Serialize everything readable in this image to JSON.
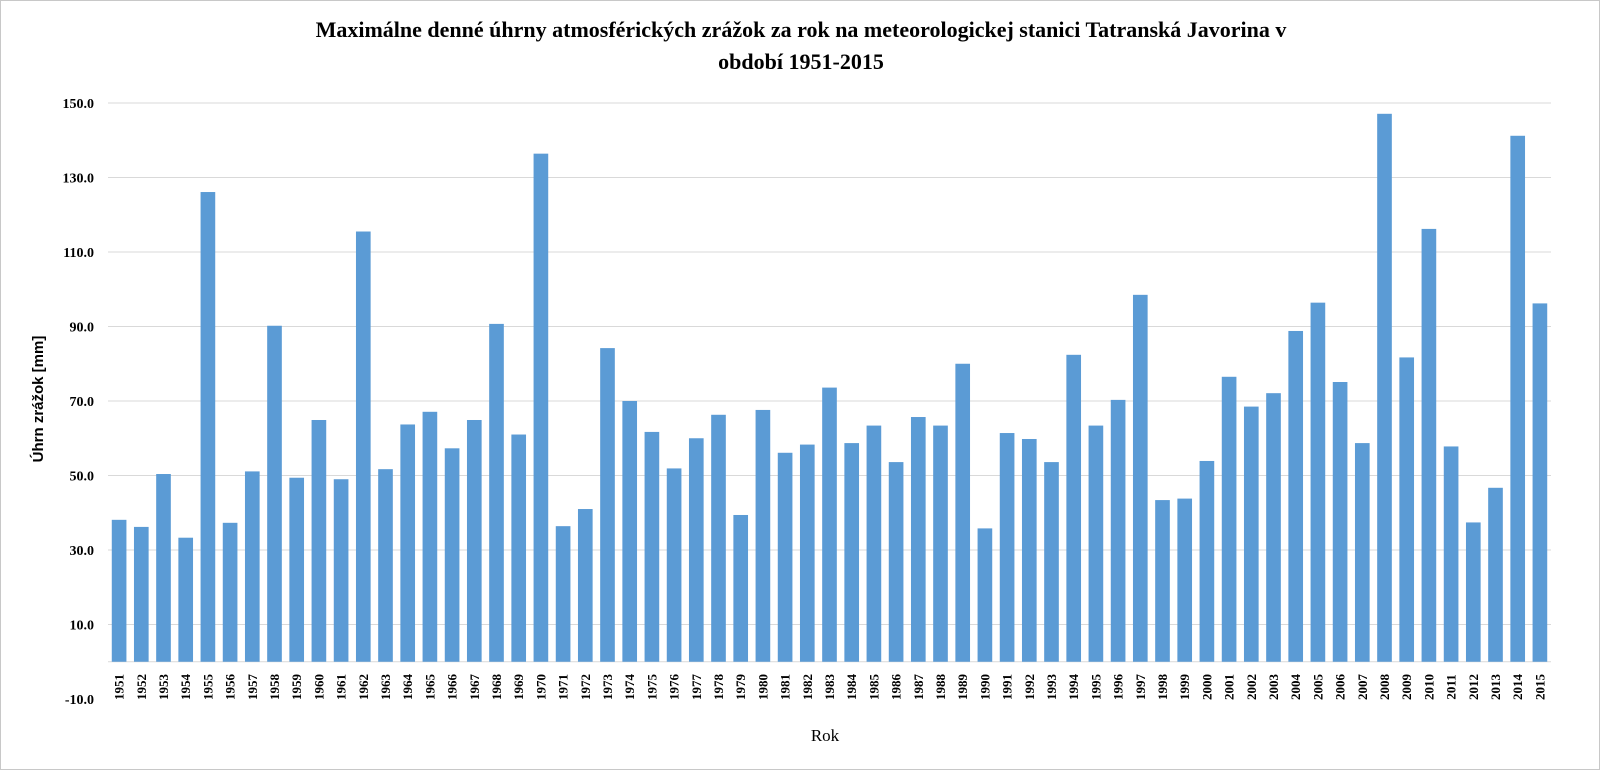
{
  "chart_data": {
    "type": "bar",
    "title": "Maximálne denné úhrny atmosférických zrážok za rok na meteorologickej stanici Tatranská Javorina v období 1951-2015",
    "title_lines": [
      "Maximálne denné úhrny atmosférických zrážok za rok na meteorologickej stanici Tatranská Javorina v",
      "období 1951-2015"
    ],
    "xlabel": "Rok",
    "ylabel": "Úhrn zrážok [mm]",
    "ylim": [
      -10,
      150
    ],
    "yticks": [
      "150.0",
      "130.0",
      "110.0",
      "90.0",
      "70.0",
      "50.0",
      "30.0",
      "10.0",
      "-10.0"
    ],
    "grid": true,
    "legend": "none",
    "color": "#5b9bd5",
    "categories": [
      "1951",
      "1952",
      "1953",
      "1954",
      "1955",
      "1956",
      "1957",
      "1958",
      "1959",
      "1960",
      "1961",
      "1962",
      "1963",
      "1964",
      "1965",
      "1966",
      "1967",
      "1968",
      "1969",
      "1970",
      "1971",
      "1972",
      "1973",
      "1974",
      "1975",
      "1976",
      "1977",
      "1978",
      "1979",
      "1980",
      "1981",
      "1982",
      "1983",
      "1984",
      "1985",
      "1986",
      "1987",
      "1988",
      "1989",
      "1990",
      "1991",
      "1992",
      "1993",
      "1994",
      "1995",
      "1996",
      "1997",
      "1998",
      "1999",
      "2000",
      "2001",
      "2002",
      "2003",
      "2004",
      "2005",
      "2006",
      "2007",
      "2008",
      "2009",
      "2010",
      "2011",
      "2012",
      "2013",
      "2014",
      "2015"
    ],
    "values": [
      38.1,
      36.2,
      50.4,
      33.3,
      126.1,
      37.3,
      51.1,
      90.2,
      49.4,
      64.9,
      49.0,
      115.5,
      51.7,
      63.7,
      67.1,
      57.3,
      64.9,
      90.7,
      61.0,
      136.4,
      36.4,
      41.0,
      84.2,
      70.0,
      61.7,
      51.9,
      60.0,
      66.3,
      39.4,
      67.6,
      56.1,
      58.3,
      73.6,
      58.7,
      63.4,
      53.6,
      65.7,
      63.4,
      80.0,
      35.8,
      61.4,
      59.8,
      53.6,
      82.4,
      63.4,
      70.3,
      98.5,
      43.4,
      43.8,
      53.9,
      76.5,
      68.5,
      72.1,
      88.8,
      96.4,
      75.1,
      58.7,
      147.1,
      81.7,
      116.2,
      57.8,
      37.4,
      46.7,
      141.2,
      96.2
    ]
  }
}
